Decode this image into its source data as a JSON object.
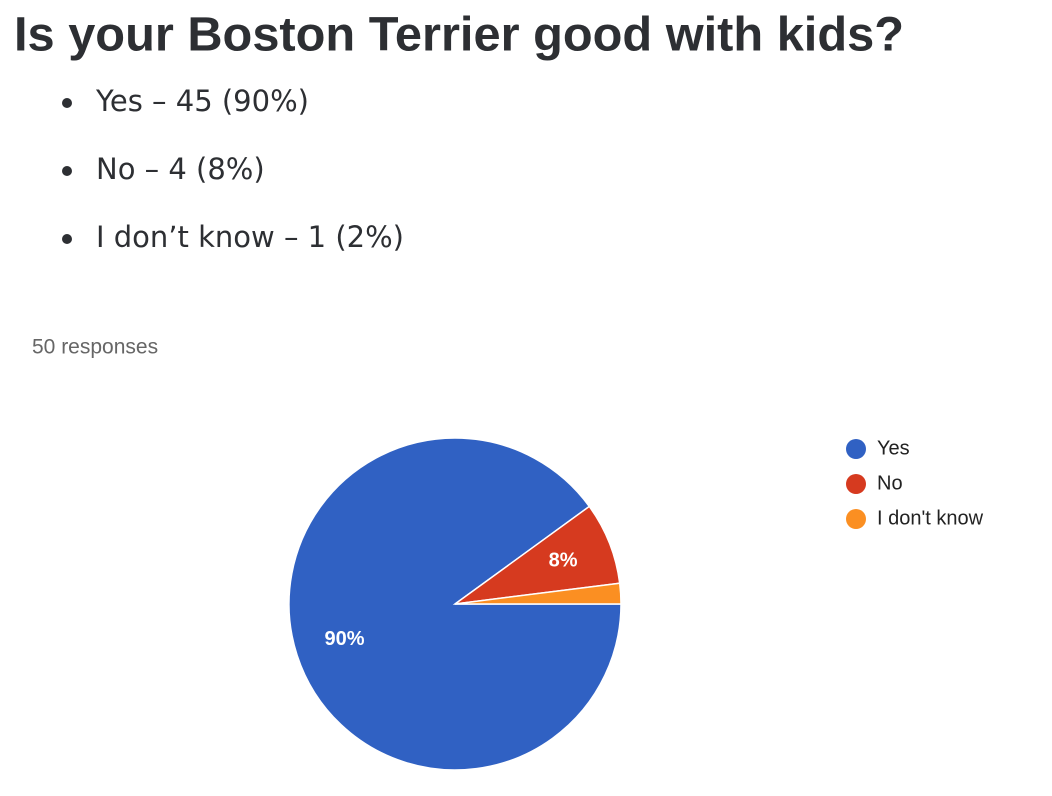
{
  "title": "Is your Boston Terrier good with kids?",
  "list": [
    "Yes – 45 (90%)",
    "No – 4 (8%)",
    "I don’t know – 1 (2%)"
  ],
  "chart_data": {
    "type": "pie",
    "subtitle": "50 responses",
    "categories": [
      "Yes",
      "No",
      "I don't know"
    ],
    "values": [
      90,
      8,
      2
    ],
    "value_labels": [
      "90%",
      "8%",
      null
    ],
    "colors": [
      "#3061c3",
      "#d63a1f",
      "#fb8f22"
    ],
    "legend": "right"
  }
}
